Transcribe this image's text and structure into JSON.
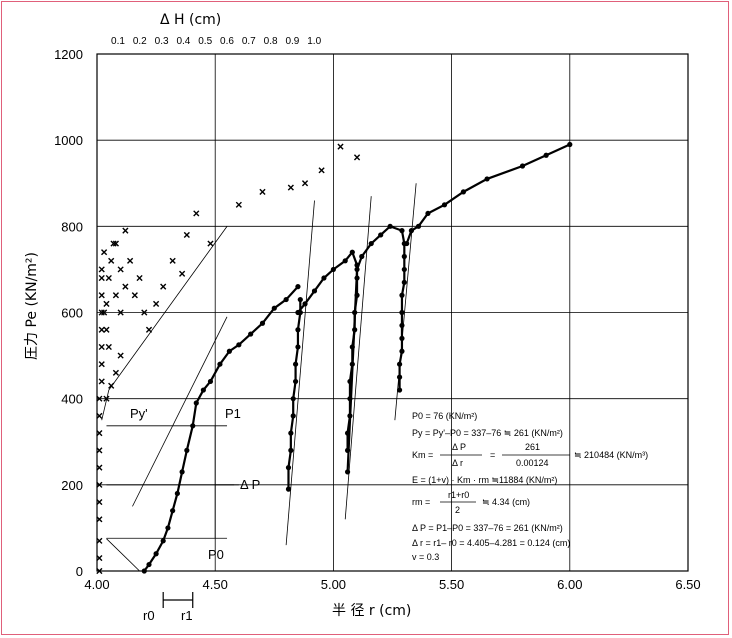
{
  "chart_data": {
    "type": "scatter",
    "xlabel": "半 径 r (cm)",
    "ylabel": "圧力 Pe (KN/m²)",
    "top_axis_label": "Δ H (cm)",
    "xlim": [
      4.0,
      6.5
    ],
    "ylim": [
      0,
      1200
    ],
    "x_ticks": [
      "4.00",
      "4.50",
      "5.00",
      "5.50",
      "6.00",
      "6.50"
    ],
    "y_ticks": [
      "0",
      "200",
      "400",
      "600",
      "800",
      "1000",
      "1200"
    ],
    "top_ticks": [
      "0.1",
      "0.2",
      "0.3",
      "0.4",
      "0.5",
      "0.6",
      "0.7",
      "0.8",
      "0.9",
      "1.0"
    ],
    "grid": true,
    "series": [
      {
        "marker": "dot",
        "points": [
          [
            4.2,
            0
          ],
          [
            4.22,
            15
          ],
          [
            4.25,
            40
          ],
          [
            4.28,
            70
          ],
          [
            4.3,
            100
          ],
          [
            4.32,
            140
          ],
          [
            4.34,
            180
          ],
          [
            4.36,
            230
          ],
          [
            4.38,
            280
          ],
          [
            4.405,
            337
          ],
          [
            4.42,
            390
          ],
          [
            4.45,
            420
          ],
          [
            4.48,
            440
          ],
          [
            4.52,
            480
          ],
          [
            4.56,
            510
          ],
          [
            4.6,
            525
          ],
          [
            4.65,
            550
          ],
          [
            4.7,
            575
          ],
          [
            4.75,
            610
          ],
          [
            4.8,
            630
          ],
          [
            4.85,
            660
          ],
          [
            4.86,
            630
          ],
          [
            4.86,
            600
          ],
          [
            4.85,
            560
          ],
          [
            4.85,
            520
          ],
          [
            4.84,
            480
          ],
          [
            4.84,
            440
          ],
          [
            4.83,
            400
          ],
          [
            4.83,
            360
          ],
          [
            4.82,
            320
          ],
          [
            4.82,
            280
          ],
          [
            4.81,
            240
          ],
          [
            4.81,
            190
          ],
          [
            4.85,
            600
          ],
          [
            4.88,
            620
          ],
          [
            4.92,
            650
          ],
          [
            4.96,
            680
          ],
          [
            5.0,
            700
          ],
          [
            5.05,
            720
          ],
          [
            5.08,
            740
          ],
          [
            5.1,
            710
          ],
          [
            5.1,
            680
          ],
          [
            5.1,
            640
          ],
          [
            5.09,
            600
          ],
          [
            5.09,
            560
          ],
          [
            5.08,
            520
          ],
          [
            5.08,
            480
          ],
          [
            5.07,
            440
          ],
          [
            5.07,
            400
          ],
          [
            5.07,
            360
          ],
          [
            5.06,
            320
          ],
          [
            5.06,
            280
          ],
          [
            5.06,
            230
          ],
          [
            5.1,
            700
          ],
          [
            5.12,
            730
          ],
          [
            5.16,
            760
          ],
          [
            5.2,
            780
          ],
          [
            5.24,
            800
          ],
          [
            5.29,
            790
          ],
          [
            5.3,
            760
          ],
          [
            5.3,
            730
          ],
          [
            5.3,
            700
          ],
          [
            5.3,
            670
          ],
          [
            5.29,
            640
          ],
          [
            5.29,
            600
          ],
          [
            5.29,
            570
          ],
          [
            5.29,
            540
          ],
          [
            5.29,
            510
          ],
          [
            5.28,
            480
          ],
          [
            5.28,
            450
          ],
          [
            5.28,
            420
          ],
          [
            5.31,
            760
          ],
          [
            5.33,
            790
          ],
          [
            5.36,
            800
          ],
          [
            5.4,
            830
          ],
          [
            5.47,
            850
          ],
          [
            5.55,
            880
          ],
          [
            5.65,
            910
          ],
          [
            5.8,
            940
          ],
          [
            5.9,
            965
          ],
          [
            6.0,
            990
          ]
        ]
      },
      {
        "marker": "x",
        "points": [
          [
            4.01,
            0
          ],
          [
            4.01,
            30
          ],
          [
            4.01,
            70
          ],
          [
            4.01,
            120
          ],
          [
            4.01,
            160
          ],
          [
            4.01,
            200
          ],
          [
            4.01,
            240
          ],
          [
            4.01,
            280
          ],
          [
            4.01,
            320
          ],
          [
            4.01,
            360
          ],
          [
            4.01,
            400
          ],
          [
            4.02,
            440
          ],
          [
            4.02,
            480
          ],
          [
            4.02,
            520
          ],
          [
            4.02,
            560
          ],
          [
            4.02,
            600
          ],
          [
            4.02,
            640
          ],
          [
            4.02,
            680
          ],
          [
            4.02,
            700
          ],
          [
            4.03,
            740
          ],
          [
            4.04,
            560
          ],
          [
            4.04,
            620
          ],
          [
            4.05,
            680
          ],
          [
            4.06,
            720
          ],
          [
            4.07,
            760
          ],
          [
            4.08,
            640
          ],
          [
            4.08,
            760
          ],
          [
            4.1,
            600
          ],
          [
            4.1,
            700
          ],
          [
            4.12,
            660
          ],
          [
            4.14,
            720
          ],
          [
            4.16,
            640
          ],
          [
            4.18,
            680
          ],
          [
            4.2,
            600
          ],
          [
            4.22,
            560
          ],
          [
            4.25,
            620
          ],
          [
            4.28,
            660
          ],
          [
            4.32,
            720
          ],
          [
            4.36,
            690
          ],
          [
            4.38,
            780
          ],
          [
            4.42,
            830
          ],
          [
            4.48,
            760
          ],
          [
            4.6,
            850
          ],
          [
            4.7,
            880
          ],
          [
            4.82,
            890
          ],
          [
            4.88,
            900
          ],
          [
            4.95,
            930
          ],
          [
            5.03,
            985
          ],
          [
            5.1,
            960
          ],
          [
            4.04,
            400
          ],
          [
            4.06,
            430
          ],
          [
            4.08,
            460
          ],
          [
            4.1,
            500
          ],
          [
            4.05,
            520
          ],
          [
            4.03,
            600
          ],
          [
            4.12,
            790
          ]
        ]
      }
    ],
    "annotations": {
      "py_label": "Py'",
      "p1_label": "P1",
      "delta_p_label": "Δ P",
      "p0_label": "P0",
      "r0_label": "r0",
      "r1_label": "r1",
      "eq1": "P0 = 76 (KN/m²)",
      "eq2": "Py = Py'–P0 = 337–76 ≒ 261 (KN/m²)",
      "eq3_left": "Km =",
      "eq3_num1": "Δ P",
      "eq3_den1": "Δ r",
      "eq3_num2": "261",
      "eq3_den2": "0.00124",
      "eq3_result": "≒ 210484 (KN/m³)",
      "eq4": "E = (1+v) · Km · rm ≒11884 (KN/m²)",
      "eq5_left": "rm =",
      "eq5_num": "r1+r0",
      "eq5_den": "2",
      "eq5_result": "≒ 4.34 (cm)",
      "eq6": "Δ P = P1–P0 = 337–76 = 261 (KN/m²)",
      "eq7": "Δ r = r1– r0 = 4.405–4.281 = 0.124 (cm)",
      "eq8": "v = 0.3"
    }
  },
  "colors": {
    "frame": "#e0607a",
    "line": "#000000"
  }
}
